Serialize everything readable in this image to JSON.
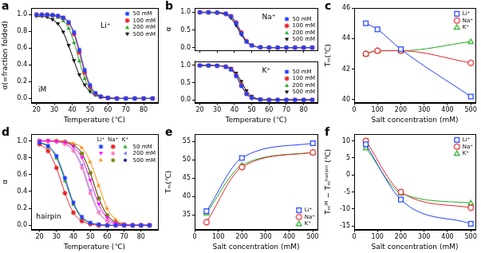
{
  "chart_data": [
    {
      "panel": "a",
      "type": "line",
      "xlabel": "Temperature (℃)",
      "ylabel": "α(=fraction folded)",
      "x": [
        20,
        23,
        26,
        29,
        32,
        35,
        38,
        41,
        44,
        47,
        50,
        53,
        56,
        60,
        65,
        70,
        75,
        80,
        85
      ],
      "xlim": [
        17,
        88
      ],
      "xticks": [
        20,
        30,
        40,
        50,
        60,
        70,
        80
      ],
      "ylim": [
        -0.05,
        1.08
      ],
      "yticks": [
        {
          "value": 0,
          "label": "0.0"
        },
        0.2,
        0.4,
        0.6,
        0.8,
        {
          "value": 1,
          "label": "1.0"
        }
      ],
      "grid": false,
      "legend": "upper right",
      "line_style": "solid",
      "annotations": [
        "Li⁺",
        "iM"
      ],
      "series": [
        {
          "name": "50 mM",
          "color": "#1f3fff",
          "marker": "square",
          "values": [
            1.0,
            1.0,
            1.0,
            0.995,
            0.987,
            0.966,
            0.912,
            0.79,
            0.58,
            0.34,
            0.16,
            0.065,
            0.025,
            0.007,
            0,
            0,
            0,
            0,
            0
          ]
        },
        {
          "name": "100 mM",
          "color": "#e8242a",
          "marker": "circle",
          "values": [
            1.0,
            1.0,
            1.0,
            0.995,
            0.985,
            0.96,
            0.9,
            0.77,
            0.55,
            0.31,
            0.14,
            0.057,
            0.02,
            0.005,
            0,
            0,
            0,
            0,
            0
          ]
        },
        {
          "name": "200 mM",
          "color": "#1fa81f",
          "marker": "triangle",
          "values": [
            1.0,
            1.0,
            0.995,
            0.99,
            0.97,
            0.93,
            0.84,
            0.67,
            0.45,
            0.24,
            0.11,
            0.045,
            0.02,
            0.005,
            0,
            0,
            0,
            0,
            0
          ]
        },
        {
          "name": "500 mM",
          "color": "#000000",
          "marker": "triangle-down",
          "values": [
            0.98,
            0.98,
            0.97,
            0.94,
            0.89,
            0.79,
            0.63,
            0.45,
            0.28,
            0.16,
            0.08,
            0.04,
            0.02,
            0.01,
            0,
            0,
            0,
            0,
            0
          ]
        }
      ]
    },
    {
      "panel": "b",
      "type": "line",
      "ylabel": "α",
      "tick_labels": "y",
      "x": [
        20,
        25,
        30,
        35,
        38,
        41,
        44,
        47,
        50,
        55,
        60,
        65,
        70,
        75,
        80,
        85
      ],
      "xlim": [
        17,
        88
      ],
      "xticks": [
        20,
        30,
        40,
        50,
        60,
        70,
        80
      ],
      "ylim": [
        -0.08,
        1.12
      ],
      "yticks": [
        {
          "value": 0,
          "label": "0.0"
        },
        0.5,
        {
          "value": 1,
          "label": "1.0"
        }
      ],
      "grid": false,
      "legend": "right",
      "line_style": "solid",
      "annotations": [
        "Na⁺"
      ],
      "series": [
        {
          "name": "50 mM",
          "color": "#1f3fff",
          "marker": "square",
          "values": [
            1.0,
            1.0,
            0.99,
            0.96,
            0.88,
            0.69,
            0.4,
            0.17,
            0.06,
            0.01,
            0,
            0,
            0,
            0,
            0,
            0
          ]
        },
        {
          "name": "100 mM",
          "color": "#e8242a",
          "marker": "circle",
          "values": [
            1.0,
            1.0,
            0.99,
            0.96,
            0.89,
            0.71,
            0.43,
            0.18,
            0.065,
            0.01,
            0,
            0,
            0,
            0,
            0,
            0
          ]
        },
        {
          "name": "200 mM",
          "color": "#1fa81f",
          "marker": "triangle",
          "values": [
            1.0,
            0.99,
            0.99,
            0.96,
            0.88,
            0.7,
            0.43,
            0.19,
            0.07,
            0.01,
            0,
            0,
            0,
            0,
            0,
            0
          ]
        },
        {
          "name": "500 mM",
          "color": "#000000",
          "marker": "triangle-down",
          "values": [
            0.99,
            0.99,
            0.98,
            0.93,
            0.83,
            0.62,
            0.36,
            0.16,
            0.06,
            0.01,
            0,
            0,
            0,
            0,
            0,
            0
          ]
        }
      ]
    },
    {
      "type": "line",
      "xlabel": "Temperature (℃)",
      "x": [
        20,
        25,
        30,
        35,
        38,
        41,
        44,
        47,
        50,
        55,
        60,
        65,
        70,
        75,
        80,
        85
      ],
      "xlim": [
        17,
        88
      ],
      "xticks": [
        20,
        30,
        40,
        50,
        60,
        70,
        80
      ],
      "ylim": [
        -0.08,
        1.12
      ],
      "yticks": [
        {
          "value": 0,
          "label": "0.0"
        },
        0.5,
        {
          "value": 1,
          "label": "1.0"
        }
      ],
      "grid": false,
      "legend": "right",
      "line_style": "solid",
      "annotations": [
        "K⁺"
      ],
      "series": [
        {
          "name": "50 mM",
          "color": "#1f3fff",
          "marker": "square",
          "values": [
            1.0,
            1.0,
            0.99,
            0.96,
            0.88,
            0.69,
            0.4,
            0.17,
            0.06,
            0.01,
            0,
            0,
            0,
            0,
            0,
            0
          ]
        },
        {
          "name": "100 mM",
          "color": "#e8242a",
          "marker": "circle",
          "values": [
            1.0,
            1.0,
            0.99,
            0.96,
            0.89,
            0.71,
            0.43,
            0.18,
            0.065,
            0.01,
            0,
            0,
            0,
            0,
            0,
            0
          ]
        },
        {
          "name": "200 mM",
          "color": "#1fa81f",
          "marker": "triangle",
          "values": [
            1.0,
            0.99,
            0.99,
            0.96,
            0.88,
            0.7,
            0.43,
            0.19,
            0.07,
            0.01,
            0,
            0,
            0,
            0,
            0,
            0
          ]
        },
        {
          "name": "500 mM",
          "color": "#000000",
          "marker": "triangle-down",
          "values": [
            1.0,
            1.0,
            0.99,
            0.97,
            0.91,
            0.77,
            0.53,
            0.26,
            0.1,
            0.02,
            0.005,
            0,
            0,
            0,
            0,
            0
          ]
        }
      ]
    },
    {
      "panel": "c",
      "type": "line",
      "xlabel": "Salt concentration (mM)",
      "ylabel": "Tₘ(℃)",
      "x": [
        50,
        100,
        200,
        500
      ],
      "xlim": [
        0,
        520
      ],
      "xticks": [
        0,
        100,
        200,
        300,
        400,
        500
      ],
      "ylim": [
        39.8,
        46
      ],
      "yticks": [
        40,
        42,
        44,
        46
      ],
      "grid": false,
      "legend": "upper right",
      "line_style": "solid",
      "series": [
        {
          "name": "Li⁺",
          "color": "#1f3fff",
          "marker": "open-square",
          "values": [
            45.0,
            44.6,
            43.3,
            40.2
          ]
        },
        {
          "name": "Na⁺",
          "color": "#e8242a",
          "marker": "open-circle",
          "values": [
            43.0,
            43.2,
            43.2,
            42.4
          ]
        },
        {
          "name": "K⁺",
          "color": "#1fa81f",
          "marker": "open-triangle",
          "values": [
            43.0,
            43.2,
            43.2,
            43.8
          ]
        }
      ]
    },
    {
      "panel": "d",
      "type": "line",
      "xlabel": "Temperature (℃)",
      "ylabel": "α",
      "x": [
        20,
        25,
        30,
        35,
        40,
        45,
        50,
        55,
        60,
        65,
        70,
        75,
        80,
        85
      ],
      "xlim": [
        15,
        90
      ],
      "xticks": [
        20,
        30,
        40,
        50,
        60,
        70,
        80
      ],
      "ylim": [
        -0.05,
        1.08
      ],
      "yticks": [
        {
          "value": 0,
          "label": "0.0"
        },
        0.2,
        0.4,
        0.6,
        0.8,
        {
          "value": 1,
          "label": "1.0"
        }
      ],
      "grid": false,
      "legend": "upper right",
      "line_style": "solid",
      "annotations": [
        "hairpin"
      ],
      "series": [
        {
          "name": "50 mM",
          "group": "Li⁺",
          "color": "#1f3fff",
          "marker": "square",
          "values": [
            0.98,
            0.94,
            0.82,
            0.56,
            0.27,
            0.1,
            0.03,
            0.01,
            0,
            0,
            0,
            0,
            0,
            0
          ]
        },
        {
          "name": "200 mM",
          "group": "Li⁺",
          "color": "#ff00ff",
          "marker": "triangle-down",
          "values": [
            1.0,
            1.0,
            0.99,
            0.98,
            0.93,
            0.8,
            0.53,
            0.25,
            0.085,
            0.026,
            0.008,
            0,
            0,
            0
          ]
        },
        {
          "name": "500 mM",
          "group": "Li⁺",
          "color": "#ff8c00",
          "marker": "triangle-right",
          "values": [
            1.0,
            1.0,
            1.0,
            0.99,
            0.97,
            0.92,
            0.75,
            0.47,
            0.2,
            0.07,
            0.02,
            0.006,
            0,
            0
          ]
        },
        {
          "name": "50 mM",
          "group": "Na⁺",
          "color": "#e8242a",
          "marker": "circle",
          "values": [
            0.96,
            0.88,
            0.68,
            0.38,
            0.15,
            0.05,
            0.015,
            0,
            0,
            0,
            0,
            0,
            0,
            0
          ]
        },
        {
          "name": "200 mM",
          "group": "Na⁺",
          "color": "#ff80c0",
          "marker": "diamond",
          "values": [
            1.0,
            0.99,
            0.99,
            0.96,
            0.88,
            0.68,
            0.38,
            0.15,
            0.05,
            0.014,
            0.004,
            0,
            0,
            0
          ]
        },
        {
          "name": "500 mM",
          "group": "Na⁺",
          "color": "#808000",
          "marker": "hexagon",
          "values": [
            1.0,
            1.0,
            1.0,
            0.99,
            0.95,
            0.85,
            0.62,
            0.32,
            0.12,
            0.04,
            0.01,
            0,
            0,
            0
          ]
        },
        {
          "name": "50 mM",
          "group": "K⁺",
          "color": "#1fa81f",
          "marker": "triangle",
          "values": [
            0.98,
            0.93,
            0.8,
            0.53,
            0.25,
            0.085,
            0.03,
            0.01,
            0,
            0,
            0,
            0,
            0,
            0
          ]
        },
        {
          "name": "200 mM",
          "group": "K⁺",
          "color": "#8080ff",
          "marker": "triangle-left",
          "values": [
            1.0,
            1.0,
            0.99,
            0.97,
            0.89,
            0.71,
            0.41,
            0.16,
            0.05,
            0.016,
            0,
            0,
            0,
            0
          ]
        },
        {
          "name": "500 mM",
          "group": "K⁺",
          "color": "#000080",
          "marker": "star",
          "values": [
            1.0,
            1.0,
            1.0,
            0.99,
            0.95,
            0.85,
            0.62,
            0.32,
            0.12,
            0.04,
            0.01,
            0,
            0,
            0
          ]
        }
      ]
    },
    {
      "panel": "e",
      "type": "line",
      "xlabel": "Salt concentration (mM)",
      "ylabel": "Tₘ(℃)",
      "x": [
        50,
        200,
        500
      ],
      "xlim": [
        0,
        520
      ],
      "xticks": [
        0,
        100,
        200,
        300,
        400,
        500
      ],
      "ylim": [
        31,
        57
      ],
      "yticks": [
        35,
        40,
        45,
        50,
        55
      ],
      "grid": false,
      "legend": "lower right",
      "line_style": "solid",
      "series": [
        {
          "name": "Li⁺",
          "color": "#1f3fff",
          "marker": "open-square",
          "values": [
            36.0,
            50.5,
            54.5
          ]
        },
        {
          "name": "Na⁺",
          "color": "#e8242a",
          "marker": "open-circle",
          "values": [
            33.0,
            48.0,
            52.0
          ]
        },
        {
          "name": "K⁺",
          "color": "#1fa81f",
          "marker": "open-triangle",
          "values": [
            35.5,
            48.5,
            52.0
          ]
        }
      ]
    },
    {
      "panel": "f",
      "type": "line",
      "xlabel": "Salt concentration (mM)",
      "ylabel": "Tₘⁱᴹ − Tₘʰᵃⁱʳᵖⁱⁿ (℃)",
      "x": [
        50,
        200,
        500
      ],
      "xlim": [
        0,
        520
      ],
      "xticks": [
        0,
        100,
        200,
        300,
        400,
        500
      ],
      "ylim": [
        -16,
        12
      ],
      "yticks": [
        -15,
        -10,
        -5,
        0,
        5,
        10
      ],
      "grid": false,
      "legend": "upper right",
      "line_style": "solid",
      "series": [
        {
          "name": "Li⁺",
          "color": "#1f3fff",
          "marker": "open-square",
          "values": [
            9.0,
            -7.2,
            -14.3
          ]
        },
        {
          "name": "Na⁺",
          "color": "#e8242a",
          "marker": "open-circle",
          "values": [
            10.0,
            -5.0,
            -9.6
          ]
        },
        {
          "name": "K⁺",
          "color": "#1fa81f",
          "marker": "open-triangle",
          "values": [
            8.0,
            -5.3,
            -8.2
          ]
        }
      ]
    }
  ]
}
